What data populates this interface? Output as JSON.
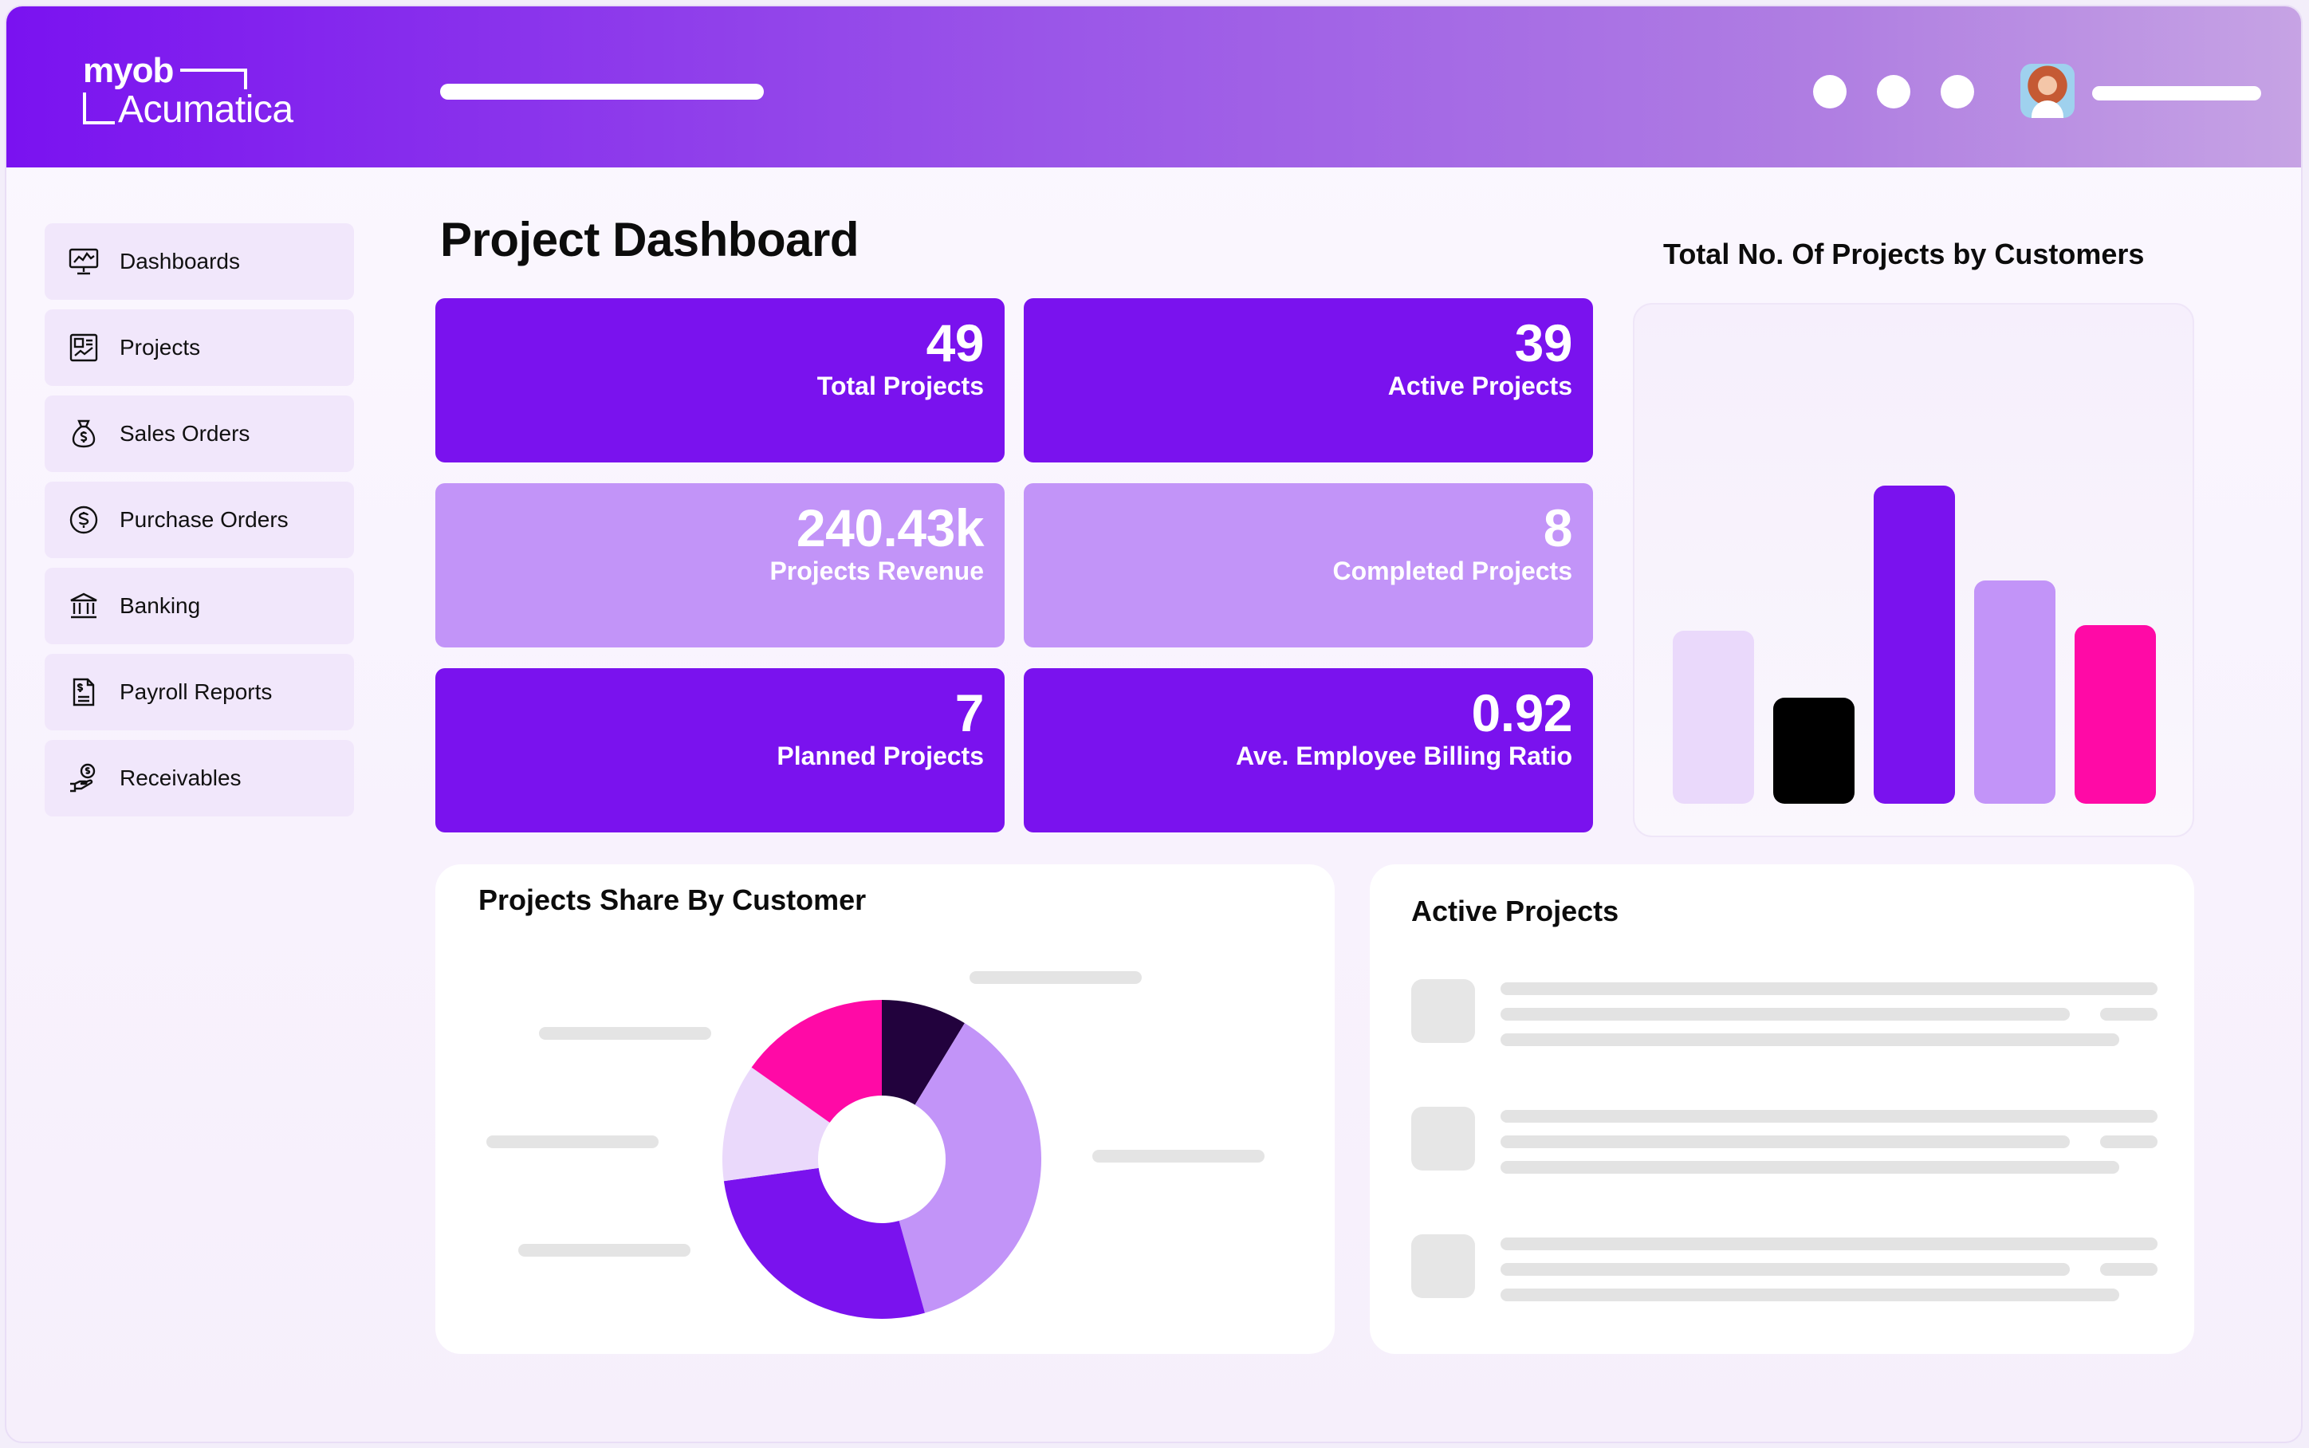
{
  "app": {
    "logo_line1": "myob",
    "logo_line2": "Acumatica"
  },
  "header": {
    "dots": 3
  },
  "sidebar": {
    "items": [
      {
        "label": "Dashboards",
        "icon": "dashboard-monitor-icon"
      },
      {
        "label": "Projects",
        "icon": "projects-board-icon"
      },
      {
        "label": "Sales Orders",
        "icon": "money-bag-icon"
      },
      {
        "label": "Purchase Orders",
        "icon": "dollar-circle-icon"
      },
      {
        "label": "Banking",
        "icon": "bank-icon"
      },
      {
        "label": "Payroll Reports",
        "icon": "payroll-document-icon"
      },
      {
        "label": "Receivables",
        "icon": "hand-coin-icon"
      }
    ]
  },
  "main": {
    "title": "Project Dashboard",
    "kpis": [
      {
        "value": "49",
        "caption": "Total Projects",
        "style": "dark"
      },
      {
        "value": "39",
        "caption": "Active Projects",
        "style": "dark"
      },
      {
        "value": "240.43k",
        "caption": "Projects Revenue",
        "style": "light"
      },
      {
        "value": "8",
        "caption": "Completed Projects",
        "style": "light"
      },
      {
        "value": "7",
        "caption": "Planned Projects",
        "style": "dark"
      },
      {
        "value": "0.92",
        "caption": "Ave. Employee Billing Ratio",
        "style": "dark"
      }
    ]
  },
  "colors": {
    "accent": "#7a12ee",
    "accent_light": "#c294f8",
    "pale": "#ead9fb",
    "black": "#000000",
    "pink": "#ff0aa6",
    "dark_purple": "#22023d"
  },
  "chart_data": [
    {
      "type": "bar",
      "title": "Total No. Of Projects by Customers",
      "categories": [
        "",
        "",
        "",
        "",
        ""
      ],
      "values": [
        31,
        19,
        57,
        40,
        32
      ],
      "colors": [
        "#ead9fb",
        "#000000",
        "#7a12ee",
        "#c294f8",
        "#ff0aa6"
      ],
      "ylim": [
        0,
        60
      ],
      "grid": false,
      "legend": "none"
    },
    {
      "type": "pie",
      "title": "Projects Share By Customer",
      "values": [
        8,
        34,
        25,
        11,
        14
      ],
      "colors": [
        "#22023d",
        "#c294f8",
        "#7a12ee",
        "#ead9fb",
        "#ff0aa6"
      ],
      "donut": true,
      "legend": "none"
    }
  ],
  "active_projects": {
    "title": "Active Projects",
    "rows": 3
  }
}
